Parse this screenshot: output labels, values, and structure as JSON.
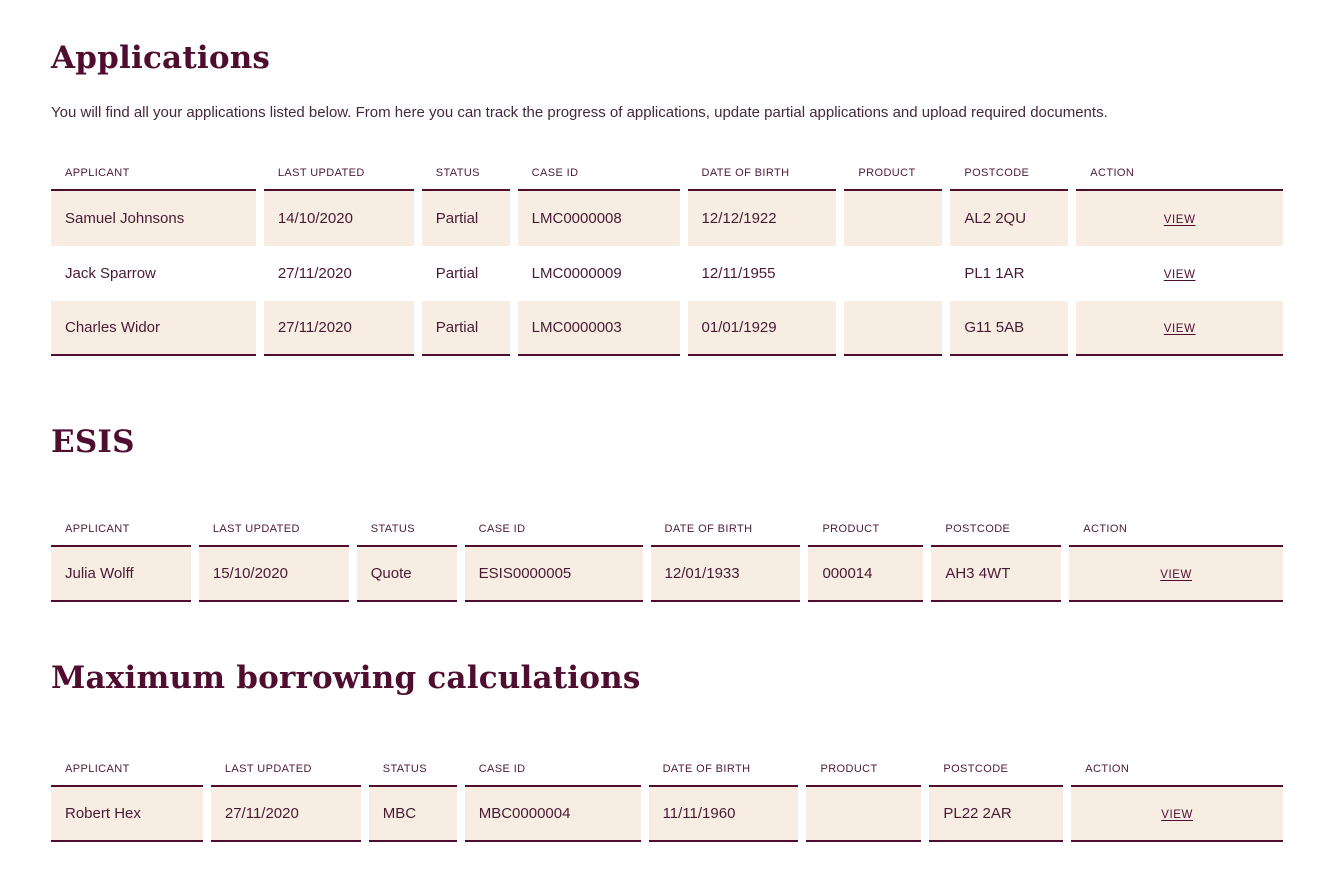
{
  "colors": {
    "accent": "#4F0E2F",
    "row_background": "#F7EDE3"
  },
  "sections": [
    {
      "heading": "Applications",
      "intro": "You will find all your applications listed below. From here you can track the progress of applications, update partial applications and upload required documents.",
      "columns": [
        "APPLICANT",
        "LAST UPDATED",
        "STATUS",
        "CASE ID",
        "DATE OF BIRTH",
        "PRODUCT",
        "POSTCODE",
        "ACTION"
      ],
      "rows": [
        {
          "cells": [
            "Samuel Johnsons",
            "14/10/2020",
            "Partial",
            "LMC0000008",
            "12/12/1922",
            "",
            "AL2 2QU"
          ],
          "action": "VIEW"
        },
        {
          "cells": [
            "Jack Sparrow",
            "27/11/2020",
            "Partial",
            "LMC0000009",
            "12/11/1955",
            "",
            "PL1 1AR"
          ],
          "action": "VIEW"
        },
        {
          "cells": [
            "Charles Widor",
            "27/11/2020",
            "Partial",
            "LMC0000003",
            "01/01/1929",
            "",
            "G11 5AB"
          ],
          "action": "VIEW"
        }
      ]
    },
    {
      "heading": "ESIS",
      "columns": [
        "APPLICANT",
        "LAST UPDATED",
        "STATUS",
        "CASE ID",
        "DATE OF BIRTH",
        "PRODUCT",
        "POSTCODE",
        "ACTION"
      ],
      "rows": [
        {
          "cells": [
            "Julia Wolff",
            "15/10/2020",
            "Quote",
            "ESIS0000005",
            "12/01/1933",
            "000014",
            "AH3 4WT"
          ],
          "action": "VIEW"
        }
      ]
    },
    {
      "heading": "Maximum borrowing calculations",
      "columns": [
        "APPLICANT",
        "LAST UPDATED",
        "STATUS",
        "CASE ID",
        "DATE OF BIRTH",
        "PRODUCT",
        "POSTCODE",
        "ACTION"
      ],
      "rows": [
        {
          "cells": [
            "Robert Hex",
            "27/11/2020",
            "MBC",
            "MBC0000004",
            "11/11/1960",
            "",
            "PL22 2AR"
          ],
          "action": "VIEW"
        }
      ]
    }
  ]
}
